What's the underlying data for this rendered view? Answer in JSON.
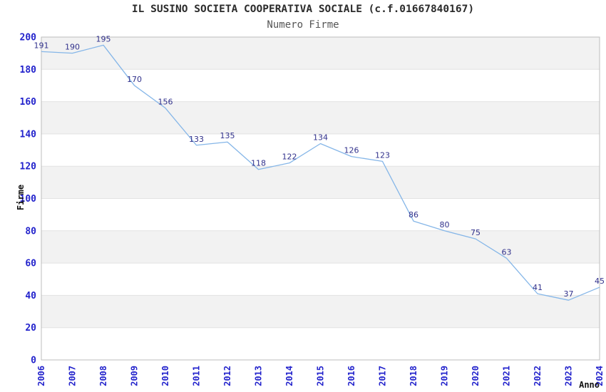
{
  "header": {
    "title": "IL SUSINO SOCIETA COOPERATIVA SOCIALE (c.f.01667840167)",
    "subtitle": "Numero Firme"
  },
  "chart_data": {
    "type": "line",
    "title": "IL SUSINO SOCIETA COOPERATIVA SOCIALE (c.f.01667840167)",
    "subtitle": "Numero Firme",
    "xlabel": "Anno",
    "ylabel": "Firme",
    "categories": [
      "2006",
      "2007",
      "2008",
      "2009",
      "2010",
      "2011",
      "2012",
      "2013",
      "2014",
      "2015",
      "2016",
      "2017",
      "2018",
      "2019",
      "2020",
      "2021",
      "2022",
      "2023",
      "2024"
    ],
    "values": [
      191,
      190,
      195,
      170,
      156,
      133,
      135,
      118,
      122,
      134,
      126,
      123,
      86,
      80,
      75,
      63,
      41,
      37,
      45
    ],
    "point_labels": true,
    "markers": "none",
    "legend": "none",
    "ylim": [
      0,
      200
    ],
    "yticks": [
      0,
      20,
      40,
      60,
      80,
      100,
      120,
      140,
      160,
      180,
      200
    ],
    "grid": "alternating horizontal gray bands every 20 units (gray band from 180-200 and each alternate band below), thin gridlines at each 20-unit boundary",
    "x_tick_rotation": -90,
    "colors": {
      "line": "#85b6e8",
      "point_label": "#31318c",
      "axis_tick_label": "#2323cc",
      "band_fill": "#f2f2f2",
      "gridline": "#e2e2e2",
      "plot_border": "#bcbcbc",
      "title_text": "#2b2b2b",
      "subtitle_text": "#555555",
      "axis_title_text": "#111111",
      "background": "#ffffff"
    }
  }
}
